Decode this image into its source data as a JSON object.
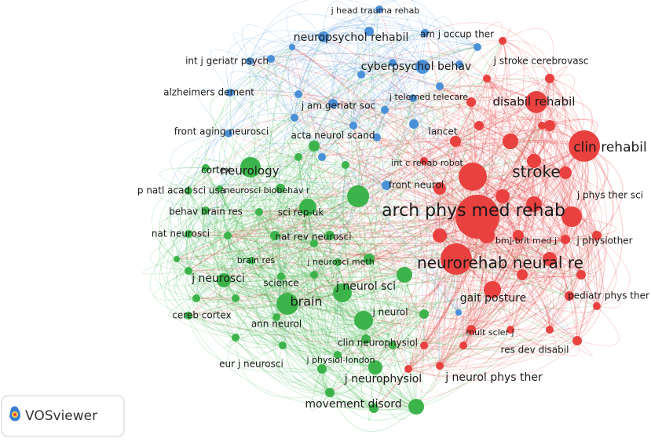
{
  "clusters": {
    "red": "#e8413f",
    "green": "#3cb44b",
    "blue": "#4a90d9"
  },
  "nodes": [
    {
      "label": "j head trauma rehab",
      "cluster": "blue"
    },
    {
      "label": "am j occup ther",
      "cluster": "blue"
    },
    {
      "label": "neuropsychol rehabil",
      "cluster": "blue"
    },
    {
      "label": "int j geriatr psych",
      "cluster": "blue"
    },
    {
      "label": "cyberpsychol behav",
      "cluster": "blue"
    },
    {
      "label": "j stroke cerebrovasc",
      "cluster": "red"
    },
    {
      "label": "alzheimers dement",
      "cluster": "blue"
    },
    {
      "label": "j am geriatr soc",
      "cluster": "blue"
    },
    {
      "label": "j telemed telecare",
      "cluster": "blue"
    },
    {
      "label": "disabil rehabil",
      "cluster": "red"
    },
    {
      "label": "front aging neurosci",
      "cluster": "blue"
    },
    {
      "label": "lancet",
      "cluster": "blue"
    },
    {
      "label": "acta neurol scand",
      "cluster": "green"
    },
    {
      "label": "clin rehabil",
      "cluster": "red"
    },
    {
      "label": "cortex",
      "cluster": "green"
    },
    {
      "label": "neurology",
      "cluster": "green"
    },
    {
      "label": "stroke",
      "cluster": "red"
    },
    {
      "label": "int c rehab robot",
      "cluster": "red"
    },
    {
      "label": "p natl acad sci usa",
      "cluster": "green"
    },
    {
      "label": "neurosci biobehav r",
      "cluster": "green"
    },
    {
      "label": "front neurol",
      "cluster": "blue"
    },
    {
      "label": "j phys ther sci",
      "cluster": "red"
    },
    {
      "label": "behav brain res",
      "cluster": "green"
    },
    {
      "label": "sci rep-uk",
      "cluster": "green"
    },
    {
      "label": "arch phys med rehab",
      "cluster": "red"
    },
    {
      "label": "nat neurosci",
      "cluster": "green"
    },
    {
      "label": "nat rev neurosci",
      "cluster": "green"
    },
    {
      "label": "bmj-brit med j",
      "cluster": "red"
    },
    {
      "label": "j physiother",
      "cluster": "red"
    },
    {
      "label": "brain res",
      "cluster": "green"
    },
    {
      "label": "j neurosci meth",
      "cluster": "green"
    },
    {
      "label": "neurorehab neural re",
      "cluster": "red"
    },
    {
      "label": "j neurosci",
      "cluster": "green"
    },
    {
      "label": "science",
      "cluster": "green"
    },
    {
      "label": "j neurol sci",
      "cluster": "green"
    },
    {
      "label": "gait posture",
      "cluster": "red"
    },
    {
      "label": "pediatr phys ther",
      "cluster": "red"
    },
    {
      "label": "brain",
      "cluster": "green"
    },
    {
      "label": "cereb cortex",
      "cluster": "green"
    },
    {
      "label": "ann neurol",
      "cluster": "green"
    },
    {
      "label": "j neurol",
      "cluster": "green"
    },
    {
      "label": "mult scler j",
      "cluster": "blue"
    },
    {
      "label": "res dev disabil",
      "cluster": "red"
    },
    {
      "label": "clin neurophysiol",
      "cluster": "green"
    },
    {
      "label": "j physiol-london",
      "cluster": "green"
    },
    {
      "label": "eur j neurosci",
      "cluster": "green"
    },
    {
      "label": "j neurophysiol",
      "cluster": "green"
    },
    {
      "label": "j neurol phys ther",
      "cluster": "red"
    },
    {
      "label": "movement disord",
      "cluster": "green"
    }
  ],
  "logo": {
    "text": "VOSviewer"
  }
}
